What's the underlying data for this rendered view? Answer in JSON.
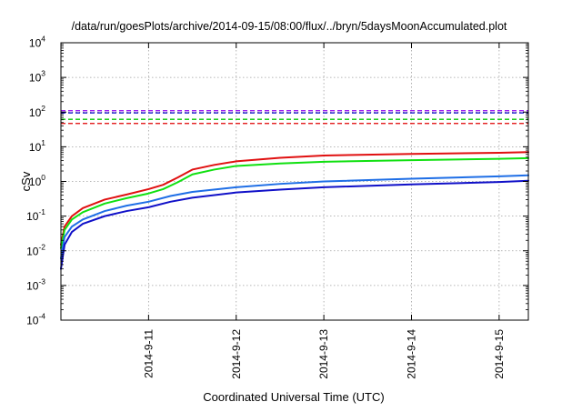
{
  "chart_data": {
    "type": "line",
    "title": "/data/run/goesPlots/archive/2014-09-15/08:00/flux/../bryn/5daysMoonAccumulated.plot",
    "xlabel": "Coordinated Universal Time (UTC)",
    "ylabel": "cSv",
    "y_scale": "log",
    "ylim": [
      0.0001,
      10000
    ],
    "xlim": [
      "2014-09-10T00:00",
      "2014-09-15T08:00"
    ],
    "x_ticks": [
      "2014-9-11",
      "2014-9-12",
      "2014-9-13",
      "2014-9-14",
      "2014-9-15"
    ],
    "y_ticks": [
      {
        "base": "10",
        "exp": "-4"
      },
      {
        "base": "10",
        "exp": "-3"
      },
      {
        "base": "10",
        "exp": "-2"
      },
      {
        "base": "10",
        "exp": "-1"
      },
      {
        "base": "10",
        "exp": "0"
      },
      {
        "base": "10",
        "exp": "1"
      },
      {
        "base": "10",
        "exp": "2"
      },
      {
        "base": "10",
        "exp": "3"
      },
      {
        "base": "10",
        "exp": "4"
      }
    ],
    "grid": true,
    "legend": "none",
    "thresholds": [
      {
        "value": 110,
        "color": "#a020f0"
      },
      {
        "value": 95,
        "color": "#0000c8"
      },
      {
        "value": 62,
        "color": "#00c800"
      },
      {
        "value": 47,
        "color": "#e00000"
      }
    ],
    "series": [
      {
        "color": "#e01010",
        "x": [
          "2014-09-10T00:00",
          "2014-09-10T01:00",
          "2014-09-10T03:00",
          "2014-09-10T06:00",
          "2014-09-10T12:00",
          "2014-09-10T18:00",
          "2014-09-11T00:00",
          "2014-09-11T04:00",
          "2014-09-11T08:00",
          "2014-09-11T12:00",
          "2014-09-11T18:00",
          "2014-09-12T00:00",
          "2014-09-12T12:00",
          "2014-09-13T00:00",
          "2014-09-14T00:00",
          "2014-09-15T00:00",
          "2014-09-15T08:00"
        ],
        "y": [
          0.015,
          0.05,
          0.1,
          0.17,
          0.3,
          0.42,
          0.6,
          0.8,
          1.3,
          2.2,
          3.0,
          3.8,
          4.8,
          5.6,
          6.2,
          6.7,
          7.0
        ]
      },
      {
        "color": "#10e010",
        "x": [
          "2014-09-10T00:00",
          "2014-09-10T01:00",
          "2014-09-10T03:00",
          "2014-09-10T06:00",
          "2014-09-10T12:00",
          "2014-09-10T18:00",
          "2014-09-11T00:00",
          "2014-09-11T04:00",
          "2014-09-11T08:00",
          "2014-09-11T12:00",
          "2014-09-11T18:00",
          "2014-09-12T00:00",
          "2014-09-12T12:00",
          "2014-09-13T00:00",
          "2014-09-14T00:00",
          "2014-09-15T00:00",
          "2014-09-15T08:00"
        ],
        "y": [
          0.012,
          0.04,
          0.08,
          0.13,
          0.23,
          0.33,
          0.45,
          0.6,
          0.95,
          1.6,
          2.2,
          2.8,
          3.3,
          3.7,
          4.1,
          4.5,
          4.7
        ]
      },
      {
        "color": "#1e6ee6",
        "x": [
          "2014-09-10T00:00",
          "2014-09-10T01:00",
          "2014-09-10T03:00",
          "2014-09-10T06:00",
          "2014-09-10T12:00",
          "2014-09-10T18:00",
          "2014-09-11T00:00",
          "2014-09-11T06:00",
          "2014-09-11T12:00",
          "2014-09-12T00:00",
          "2014-09-12T12:00",
          "2014-09-13T00:00",
          "2014-09-14T00:00",
          "2014-09-15T00:00",
          "2014-09-15T08:00"
        ],
        "y": [
          0.006,
          0.025,
          0.05,
          0.08,
          0.14,
          0.2,
          0.26,
          0.38,
          0.5,
          0.68,
          0.85,
          1.0,
          1.2,
          1.4,
          1.5
        ]
      },
      {
        "color": "#1010c8",
        "x": [
          "2014-09-10T00:00",
          "2014-09-10T01:00",
          "2014-09-10T03:00",
          "2014-09-10T06:00",
          "2014-09-10T12:00",
          "2014-09-10T18:00",
          "2014-09-11T00:00",
          "2014-09-11T06:00",
          "2014-09-11T12:00",
          "2014-09-12T00:00",
          "2014-09-12T12:00",
          "2014-09-13T00:00",
          "2014-09-14T00:00",
          "2014-09-15T00:00",
          "2014-09-15T08:00"
        ],
        "y": [
          0.003,
          0.015,
          0.035,
          0.06,
          0.1,
          0.14,
          0.18,
          0.26,
          0.34,
          0.48,
          0.58,
          0.68,
          0.82,
          0.96,
          1.05
        ]
      }
    ]
  }
}
